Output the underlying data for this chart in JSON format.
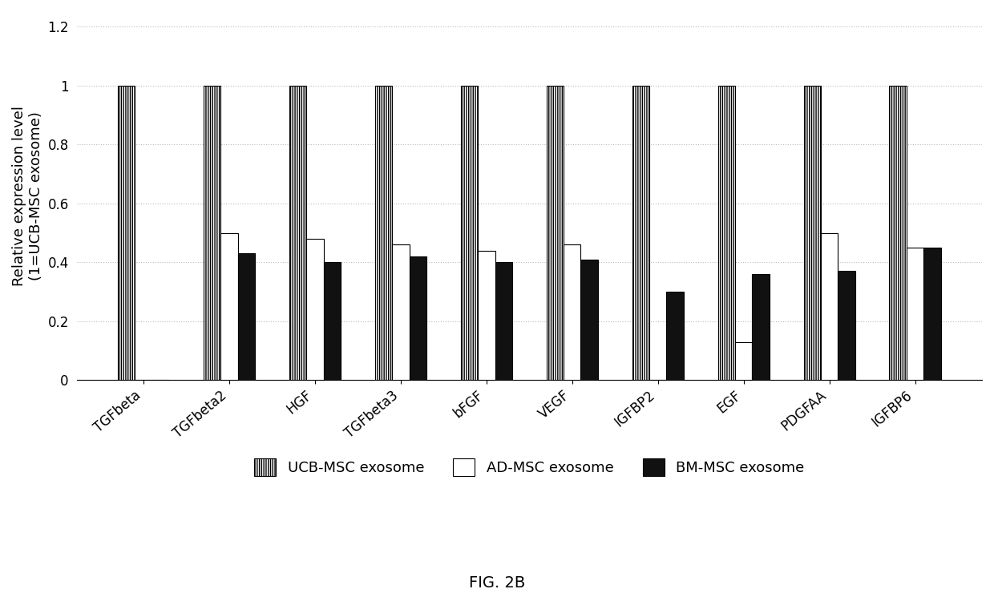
{
  "categories": [
    "TGFbeta",
    "TGFbeta2",
    "HGF",
    "TGFbeta3",
    "bFGF",
    "VEGF",
    "IGFBP2",
    "EGF",
    "PDGFAA",
    "IGFBP6"
  ],
  "ucb": [
    1.0,
    1.0,
    1.0,
    1.0,
    1.0,
    1.0,
    1.0,
    1.0,
    1.0,
    1.0
  ],
  "ad": [
    0.0,
    0.5,
    0.48,
    0.46,
    0.44,
    0.46,
    0.0,
    0.13,
    0.5,
    0.45
  ],
  "bm": [
    0.0,
    0.43,
    0.4,
    0.42,
    0.4,
    0.41,
    0.3,
    0.36,
    0.37,
    0.45
  ],
  "ucb_color": "#ffffff",
  "ucb_hatch": "||||||",
  "ad_color": "#ffffff",
  "ad_hatch": "",
  "bm_color": "#111111",
  "bm_hatch": "",
  "ylabel": "Relative expression level\n(1=UCB-MSC exosome)",
  "ylim": [
    0,
    1.25
  ],
  "yticks": [
    0,
    0.2,
    0.4,
    0.6,
    0.8,
    1.0,
    1.2
  ],
  "ytick_labels": [
    "0",
    "0.2",
    "0.4",
    "0.6",
    "0.8",
    "1",
    "1.2"
  ],
  "legend_labels": [
    "UCB-MSC exosome",
    "AD-MSC exosome",
    "BM-MSC exosome"
  ],
  "figure_label": "FIG. 2B",
  "bar_width": 0.2,
  "grid_color": "#bbbbbb",
  "background_color": "#ffffff",
  "tick_fontsize": 12,
  "label_fontsize": 13,
  "legend_fontsize": 13
}
